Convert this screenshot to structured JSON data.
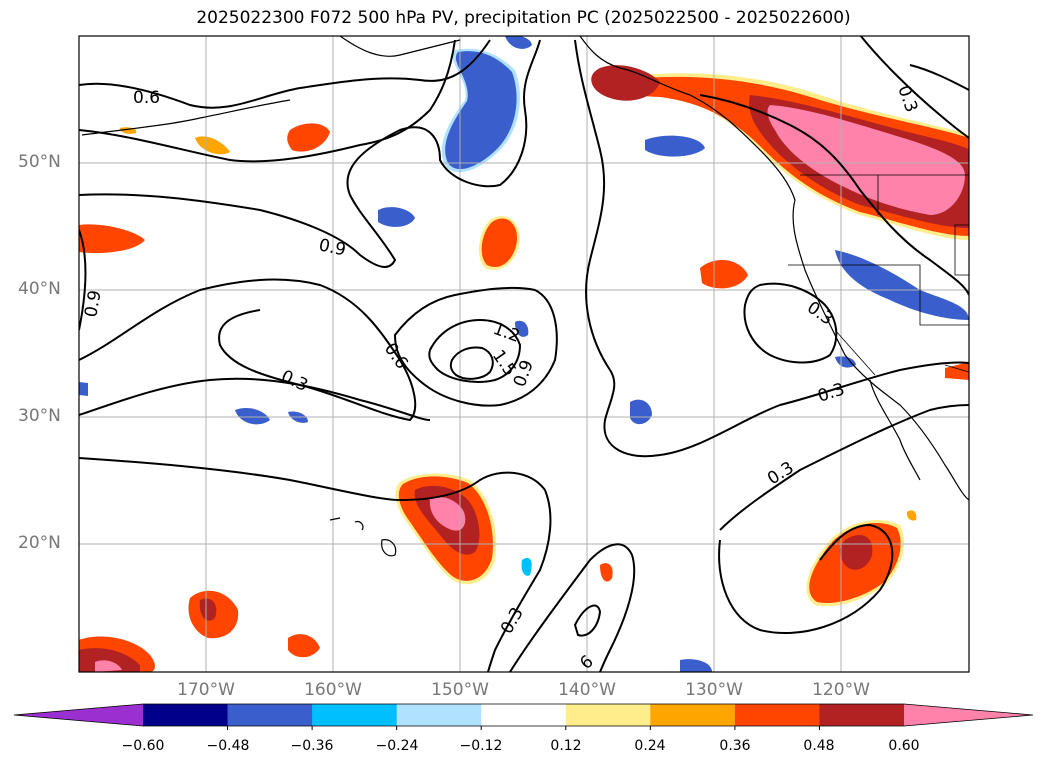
{
  "title": "2025022300 F072 500 hPa PV, precipitation PC (2025022500 - 2025022600)",
  "axes": {
    "lat_labels": [
      "50°N",
      "40°N",
      "30°N",
      "20°N"
    ],
    "lon_labels": [
      "170°W",
      "160°W",
      "150°W",
      "140°W",
      "130°W",
      "120°W"
    ]
  },
  "pv_contours": {
    "color": "#000000",
    "labels": [
      "0.6",
      "0.9",
      "0.9",
      "0.6",
      "0.3",
      "1.2",
      "1.5",
      "0.9",
      "0.3",
      "0.3",
      "0.3",
      "0.3",
      "0.3",
      "6"
    ]
  },
  "colorbar": {
    "ticks": [
      "−0.60",
      "−0.48",
      "−0.36",
      "−0.24",
      "−0.12",
      "0.12",
      "0.24",
      "0.36",
      "0.48",
      "0.60"
    ],
    "colors": [
      "#9b30d0",
      "#00008b",
      "#3a5fcd",
      "#00bfff",
      "#b0e2ff",
      "#ffffff",
      "#ffec8b",
      "#ffa500",
      "#ff4500",
      "#b22222",
      "#ff82ab"
    ]
  }
}
